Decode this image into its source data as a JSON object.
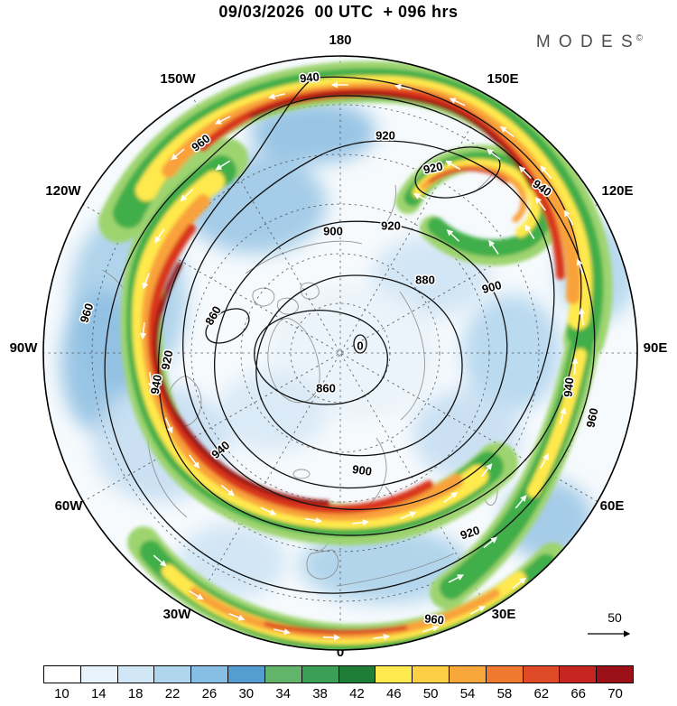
{
  "header": {
    "title": "09/03/2026  00 UTC  + 096 hrs",
    "brand": "M O D E S",
    "brand_mark": "©"
  },
  "map": {
    "lon_labels": [
      "180",
      "150W",
      "150E",
      "120W",
      "120E",
      "90W",
      "90E",
      "60W",
      "60E",
      "30W",
      "30E",
      "0"
    ],
    "contours": [
      "940",
      "920",
      "960",
      "940",
      "920",
      "900",
      "920",
      "880",
      "860",
      "860",
      "900",
      "920",
      "940",
      "940",
      "900",
      "920",
      "940",
      "960",
      "960",
      "960",
      "0"
    ]
  },
  "wind_reference": {
    "label": "50"
  },
  "chart_data": {
    "type": "heatmap",
    "title": "09/03/2026 00 UTC + 096 hrs",
    "projection": "Northern Hemisphere polar stereographic, 0° at bottom, 180° at top",
    "meridian_labels": [
      "180",
      "150W",
      "150E",
      "120W",
      "120E",
      "90W",
      "90E",
      "60W",
      "60E",
      "30W",
      "30E",
      "0"
    ],
    "contour_levels": [
      860,
      880,
      900,
      920,
      940,
      960
    ],
    "contour_field_note": "black solid contours labeled 860-960, lowest values near pole",
    "shading_field_note": "wind speed shading with white flow arrows along jet bands",
    "colorbar": {
      "ticks": [
        "10",
        "14",
        "18",
        "22",
        "26",
        "30",
        "34",
        "38",
        "42",
        "46",
        "50",
        "54",
        "58",
        "62",
        "66",
        "70"
      ],
      "colors": [
        "#ffffff",
        "#e9f3fb",
        "#d2e7f6",
        "#b0d6ee",
        "#86bfe3",
        "#539dd1",
        "#62b46a",
        "#3ba055",
        "#1e7e38",
        "#ffe94e",
        "#fdcf44",
        "#f8a83a",
        "#ef7a2f",
        "#e04b27",
        "#c6261f",
        "#9b1117"
      ]
    },
    "wind_reference_value": "50"
  }
}
